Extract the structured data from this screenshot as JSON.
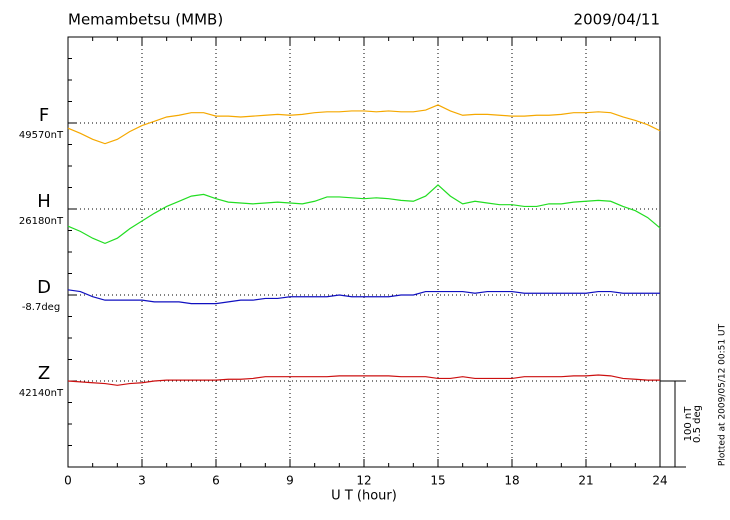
{
  "chart_data": {
    "type": "line",
    "title": "Memambetsu (MMB)",
    "date": "2009/04/11",
    "xlabel": "U T (hour)",
    "note": "Plotted at 2009/05/12 00:51 UT",
    "xlim": [
      0,
      24
    ],
    "xticks": [
      0,
      3,
      6,
      9,
      12,
      15,
      18,
      21,
      24
    ],
    "grid": true,
    "x": [
      0,
      0.5,
      1,
      1.5,
      2,
      2.5,
      3,
      3.5,
      4,
      4.5,
      5,
      5.5,
      6,
      6.5,
      7,
      7.5,
      8,
      8.5,
      9,
      9.5,
      10,
      10.5,
      11,
      11.5,
      12,
      12.5,
      13,
      13.5,
      14,
      14.5,
      15,
      15.5,
      16,
      16.5,
      17,
      17.5,
      18,
      18.5,
      19,
      19.5,
      20,
      20.5,
      21,
      21.5,
      22,
      22.5,
      23,
      23.5,
      24
    ],
    "scale_bar": {
      "value": 100,
      "labels": [
        "100 nT",
        "0.5 deg"
      ]
    },
    "series": [
      {
        "name": "F",
        "color": "#f5a800",
        "baseline": {
          "value": 49570,
          "label": "49570nT"
        },
        "ylim": [
          49170,
          49670
        ],
        "values": [
          49564,
          49558,
          49551,
          49546,
          49551,
          49560,
          49567,
          49572,
          49577,
          49579,
          49582,
          49582,
          49578,
          49578,
          49577,
          49578,
          49579,
          49580,
          49579,
          49580,
          49582,
          49583,
          49583,
          49584,
          49584,
          49583,
          49584,
          49583,
          49583,
          49585,
          49591,
          49584,
          49579,
          49580,
          49580,
          49579,
          49578,
          49578,
          49579,
          49579,
          49580,
          49582,
          49582,
          49583,
          49582,
          49577,
          49573,
          49568,
          49561
        ]
      },
      {
        "name": "H",
        "color": "#22dd22",
        "baseline": {
          "value": 26180,
          "label": "26180nT"
        },
        "ylim": [
          25880,
          26380
        ],
        "values": [
          26160,
          26154,
          26146,
          26140,
          26146,
          26157,
          26166,
          26175,
          26183,
          26189,
          26195,
          26197,
          26192,
          26188,
          26187,
          26186,
          26187,
          26188,
          26187,
          26186,
          26189,
          26194,
          26194,
          26193,
          26192,
          26193,
          26192,
          26190,
          26189,
          26195,
          26208,
          26195,
          26186,
          26189,
          26187,
          26185,
          26185,
          26183,
          26183,
          26186,
          26186,
          26188,
          26189,
          26190,
          26189,
          26183,
          26178,
          26170,
          26158
        ]
      },
      {
        "name": "D",
        "color": "#1010c0",
        "baseline": {
          "value": -8.7,
          "label": "-8.7deg"
        },
        "ylim": [
          -9.7,
          -7.2
        ],
        "values": [
          -8.67,
          -8.68,
          -8.71,
          -8.73,
          -8.73,
          -8.73,
          -8.73,
          -8.74,
          -8.74,
          -8.74,
          -8.75,
          -8.75,
          -8.75,
          -8.74,
          -8.73,
          -8.73,
          -8.72,
          -8.72,
          -8.71,
          -8.71,
          -8.71,
          -8.71,
          -8.7,
          -8.71,
          -8.71,
          -8.71,
          -8.71,
          -8.7,
          -8.7,
          -8.68,
          -8.68,
          -8.68,
          -8.68,
          -8.69,
          -8.68,
          -8.68,
          -8.68,
          -8.69,
          -8.69,
          -8.69,
          -8.69,
          -8.69,
          -8.69,
          -8.68,
          -8.68,
          -8.69,
          -8.69,
          -8.69,
          -8.69
        ]
      },
      {
        "name": "Z",
        "color": "#cc1010",
        "baseline": {
          "value": 42140,
          "label": "42140nT"
        },
        "ylim": [
          42040,
          42540
        ],
        "values": [
          42140,
          42139,
          42138,
          42137,
          42135,
          42137,
          42138,
          42140,
          42141,
          42141,
          42141,
          42141,
          42141,
          42142,
          42142,
          42143,
          42145,
          42145,
          42145,
          42145,
          42145,
          42145,
          42146,
          42146,
          42146,
          42146,
          42146,
          42145,
          42145,
          42145,
          42143,
          42143,
          42145,
          42143,
          42143,
          42143,
          42143,
          42145,
          42145,
          42145,
          42145,
          42146,
          42146,
          42147,
          42146,
          42143,
          42142,
          42141,
          42141
        ]
      }
    ]
  }
}
